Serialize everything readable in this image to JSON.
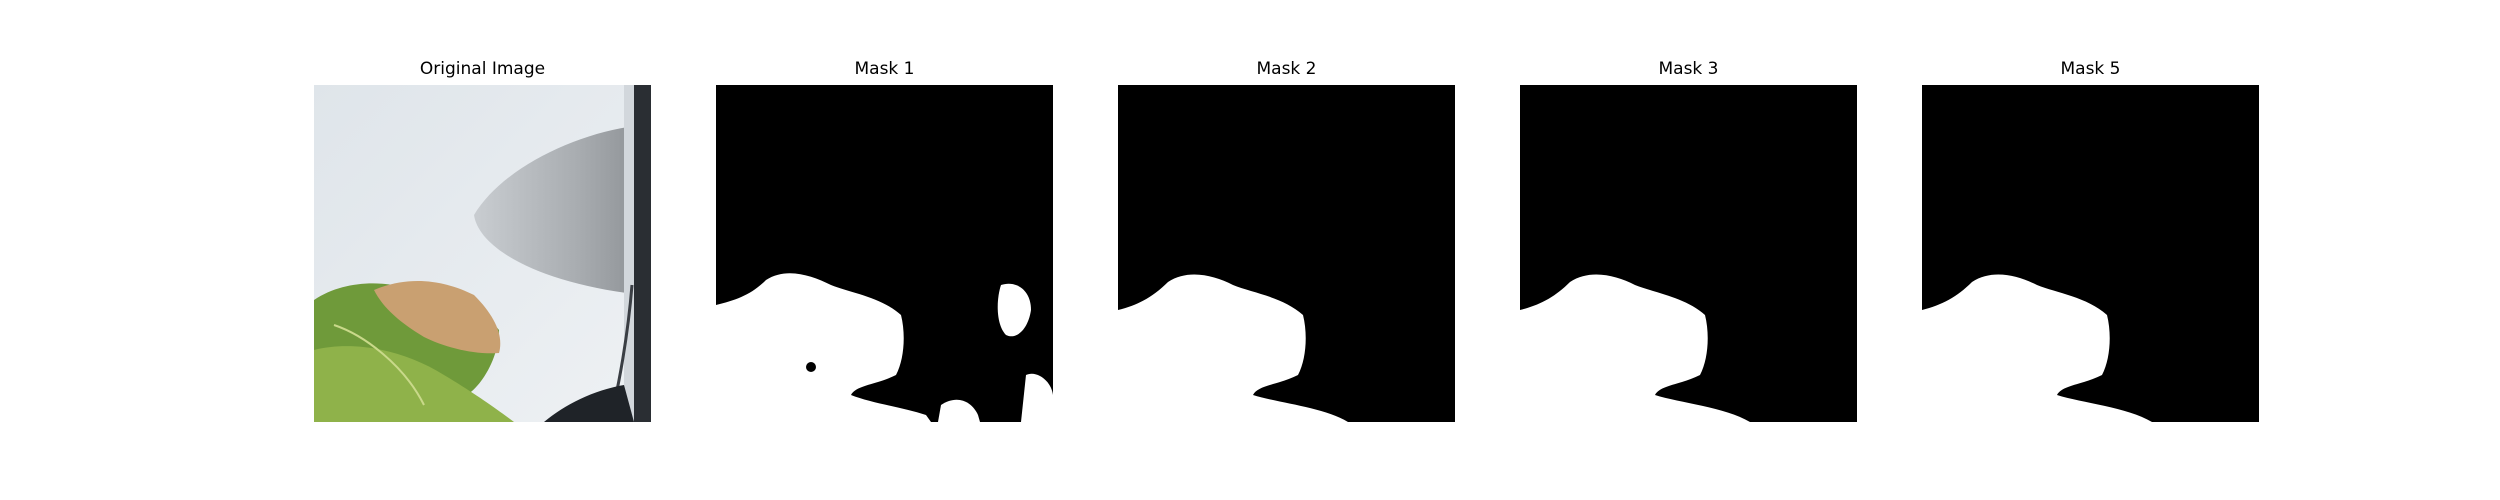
{
  "figure": {
    "panels": [
      {
        "title": "Original Image",
        "content": "photo"
      },
      {
        "title": "Mask 1",
        "content": "mask"
      },
      {
        "title": "Mask 2",
        "content": "mask"
      },
      {
        "title": "Mask 3",
        "content": "mask"
      },
      {
        "title": "Mask 5",
        "content": "mask"
      }
    ]
  },
  "colors": {
    "mask_background": "#000000",
    "mask_foreground": "#ffffff",
    "car_body": "#e6eaee",
    "leaf_green": "#6f9a3a",
    "leaf_brown": "#c9a071"
  }
}
